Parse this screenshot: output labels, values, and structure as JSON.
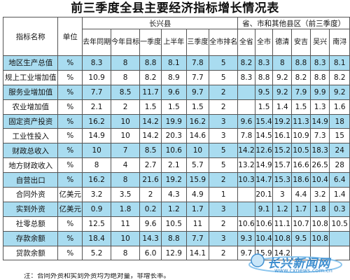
{
  "title": "前三季度全县主要经济指标增长情况表",
  "header": {
    "indicator": "指标名称",
    "unit": "单位",
    "group_changxing": "长兴县",
    "group_others": "省、市和其他县区（前三季度）",
    "sub": [
      "去年同期",
      "今年目标",
      "一季度",
      "上半年",
      "三季度",
      "全市排名",
      "全省",
      "全市",
      "德清",
      "安吉",
      "吴兴",
      "南浔"
    ]
  },
  "rows": [
    {
      "name": "地区生产总值",
      "unit": "%",
      "v": [
        "8.3",
        "8",
        "8.8",
        "8.1",
        "7.8",
        "5",
        "8.2",
        "8.3",
        "8",
        "8.8",
        "8.3",
        "8.1"
      ]
    },
    {
      "name": "规上工业增加值",
      "unit": "%",
      "v": [
        "10.9",
        "8",
        "8.2",
        "8.9",
        "7.7",
        "5",
        "8.3",
        "8.8",
        "9.2",
        "8.2",
        "8.8",
        "8.2"
      ]
    },
    {
      "name": "服务业增加值",
      "unit": "%",
      "v": [
        "7.7",
        "8.5",
        "11.7",
        "9.6",
        "9.7",
        "2",
        "",
        "9.5",
        "9.2",
        "7.9",
        "9.9",
        "9.2"
      ]
    },
    {
      "name": "农业增加值",
      "unit": "%",
      "v": [
        "2.1",
        "2",
        "1.5",
        "1.5",
        "1.5",
        "2",
        "",
        "1.5",
        "1.4",
        "1.5",
        "1.3",
        "1.6"
      ]
    },
    {
      "name": "固定资产投资",
      "unit": "%",
      "v": [
        "16.2",
        "10",
        "14.2",
        "19.9",
        "16.2",
        "3",
        "9.6",
        "15.4",
        "19.2",
        "11.3",
        "14.9",
        "18"
      ]
    },
    {
      "name": "工业性投入",
      "unit": "%",
      "v": [
        "14.9",
        "10",
        "14.2",
        "20.3",
        "14.6",
        "3",
        "7.8",
        "14.5",
        "16.1",
        "10.9",
        "7.3",
        "15"
      ]
    },
    {
      "name": "财政总收入",
      "unit": "%",
      "v": [
        "10",
        "7",
        "8.5",
        "10.6",
        "10",
        "5",
        "14.2",
        "12.6",
        "15.2",
        "10.5",
        "18.3",
        "24"
      ]
    },
    {
      "name": "地方财政收入",
      "unit": "%",
      "v": [
        "8",
        "4",
        "2.7",
        "2.1",
        "5.7",
        "5",
        "13.2",
        "14.9",
        "15.7",
        "16.6",
        "26.5",
        "28"
      ]
    },
    {
      "name": "自营出口",
      "unit": "%",
      "v": [
        "16.2",
        "8",
        "21.6",
        "19.2",
        "15.9",
        "2",
        "10.3",
        "14.7",
        "15.3",
        "18.6",
        "10.4",
        "6.4"
      ]
    },
    {
      "name": "合同外资",
      "unit": "亿美元",
      "v": [
        "3.2",
        "3.5",
        "2",
        "4.3",
        "4.9",
        "1",
        "",
        "20.1",
        "3",
        "4.4",
        "3.2",
        "1.4"
      ]
    },
    {
      "name": "实到外资",
      "unit": "亿美元",
      "v": [
        "0.9",
        "1.8",
        "0.2",
        "1.2",
        "1.7",
        "3",
        "",
        "9.1",
        "1.2",
        "1.7",
        "1.8",
        "0.3"
      ]
    },
    {
      "name": "社零总额",
      "unit": "%",
      "v": [
        "12.5",
        "11",
        "9.6",
        "10.5",
        "11",
        "2",
        "10.6",
        "10.6",
        "11.1",
        "10.7",
        "10.8",
        "10.5"
      ]
    },
    {
      "name": "存款余额",
      "unit": "%",
      "v": [
        "18.4",
        "10",
        "14.3",
        "8.8",
        "7.7",
        "3",
        "9.3",
        "10.4",
        "10.8",
        "9.5",
        "10.8",
        ""
      ]
    },
    {
      "name": "贷款余额",
      "unit": "%",
      "v": [
        "5.2",
        "8",
        "6.0",
        "12.9",
        "14.1",
        "2",
        "9.7",
        "15.9",
        "14.2",
        "",
        "",
        ""
      ]
    }
  ],
  "footnote": "注：合同外资和实到外资均为绝对量，非增长率。",
  "watermark": {
    "text": "长兴新闻网",
    "url": "www.cxnews.com.cn"
  }
}
